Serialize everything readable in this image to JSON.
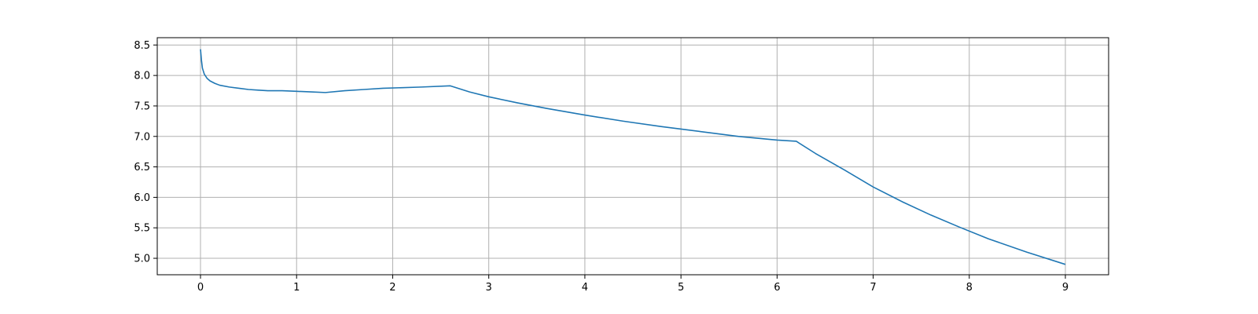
{
  "chart_data": {
    "type": "line",
    "title": "",
    "xlabel": "",
    "ylabel": "",
    "xlim": [
      -0.45,
      9.45
    ],
    "ylim": [
      4.73,
      8.62
    ],
    "grid": true,
    "x_ticks": [
      0,
      1,
      2,
      3,
      4,
      5,
      6,
      7,
      8,
      9
    ],
    "y_ticks": [
      5.0,
      5.5,
      6.0,
      6.5,
      7.0,
      7.5,
      8.0,
      8.5
    ],
    "x_tick_labels": [
      "0",
      "1",
      "2",
      "3",
      "4",
      "5",
      "6",
      "7",
      "8",
      "9"
    ],
    "y_tick_labels": [
      "5.0",
      "5.5",
      "6.0",
      "6.5",
      "7.0",
      "7.5",
      "8.0",
      "8.5"
    ],
    "series": [
      {
        "color": "#1f77b4",
        "x": [
          0,
          0.01,
          0.02,
          0.04,
          0.07,
          0.1,
          0.15,
          0.2,
          0.3,
          0.4,
          0.5,
          0.6,
          0.7,
          0.85,
          1.0,
          1.15,
          1.3,
          1.5,
          1.7,
          1.9,
          2.1,
          2.3,
          2.6,
          2.8,
          3.0,
          3.3,
          3.6,
          4.0,
          4.4,
          4.8,
          5.2,
          5.6,
          6.0,
          6.2,
          6.4,
          6.7,
          7.0,
          7.3,
          7.6,
          7.9,
          8.2,
          8.6,
          9.0
        ],
        "y": [
          8.43,
          8.25,
          8.12,
          8.02,
          7.95,
          7.91,
          7.87,
          7.84,
          7.81,
          7.79,
          7.77,
          7.76,
          7.75,
          7.75,
          7.74,
          7.73,
          7.72,
          7.75,
          7.77,
          7.79,
          7.8,
          7.81,
          7.83,
          7.73,
          7.65,
          7.55,
          7.46,
          7.35,
          7.25,
          7.16,
          7.08,
          7.0,
          6.94,
          6.92,
          6.72,
          6.45,
          6.17,
          5.93,
          5.71,
          5.51,
          5.32,
          5.1,
          4.9
        ]
      }
    ]
  }
}
